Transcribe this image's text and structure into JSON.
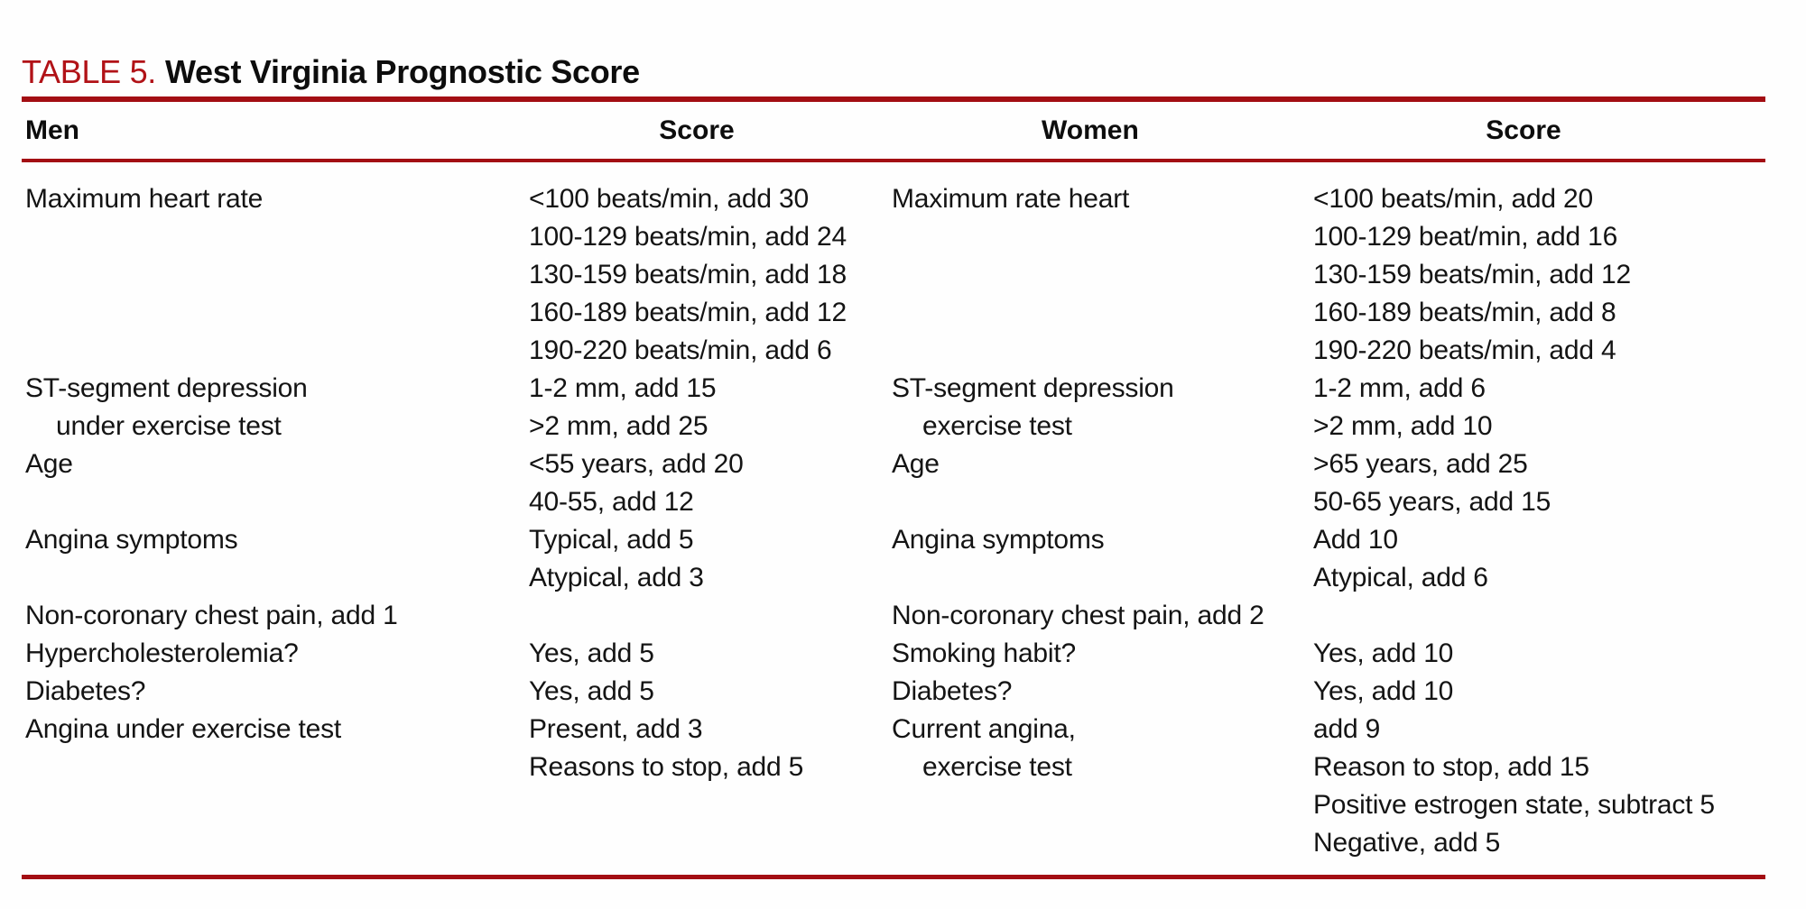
{
  "title": {
    "label": "TABLE 5.",
    "text": "West Virginia Prognostic Score"
  },
  "colors": {
    "title_red": "#b11217",
    "rule_red": "#a30e13",
    "text": "#141414"
  },
  "header": {
    "men": "Men",
    "men_score": "Score",
    "women": "Women",
    "women_score": "Score"
  },
  "rows": [
    {
      "men": "Maximum heart rate",
      "men_score": "<100 beats/min, add 30",
      "women": "Maximum rate heart",
      "women_score": "<100 beats/min, add 20"
    },
    {
      "men": "",
      "men_score": "100-129 beats/min, add 24",
      "women": "",
      "women_score": "100-129 beat/min, add 16"
    },
    {
      "men": "",
      "men_score": "130-159 beats/min, add 18",
      "women": "",
      "women_score": "130-159 beats/min, add 12"
    },
    {
      "men": "",
      "men_score": "160-189 beats/min, add 12",
      "women": "",
      "women_score": "160-189 beats/min, add 8"
    },
    {
      "men": "",
      "men_score": "190-220 beats/min, add 6",
      "women": "",
      "women_score": "190-220 beats/min, add 4"
    },
    {
      "men": "ST-segment depression",
      "men_score": "1-2 mm, add 15",
      "women": "ST-segment depression",
      "women_score": "1-2 mm, add 6"
    },
    {
      "men": "under exercise test",
      "men_score": ">2 mm, add 25",
      "women": "exercise test",
      "women_score": ">2 mm, add 10"
    },
    {
      "men": "Age",
      "men_score": "<55 years, add 20",
      "women": "Age",
      "women_score": ">65 years, add 25"
    },
    {
      "men": "",
      "men_score": "40-55, add 12",
      "women": "",
      "women_score": "50-65 years, add 15"
    },
    {
      "men": "Angina symptoms",
      "men_score": "Typical, add 5",
      "women": "Angina symptoms",
      "women_score": "Add 10"
    },
    {
      "men": "",
      "men_score": "Atypical, add 3",
      "women": "",
      "women_score": "Atypical, add 6"
    },
    {
      "men": "Non-coronary chest pain, add 1",
      "men_score": "",
      "women": "Non-coronary chest pain, add 2",
      "women_score": ""
    },
    {
      "men": "Hypercholesterolemia?",
      "men_score": "Yes, add 5",
      "women": "Smoking habit?",
      "women_score": "Yes, add 10"
    },
    {
      "men": "Diabetes?",
      "men_score": "Yes, add 5",
      "women": "Diabetes?",
      "women_score": "Yes, add 10"
    },
    {
      "men": "Angina under exercise test",
      "men_score": "Present, add 3",
      "women": "Current angina,",
      "women_score": "add 9"
    },
    {
      "men": "",
      "men_score": "Reasons to stop, add 5",
      "women": "exercise test",
      "women_score": "Reason to stop, add 15"
    },
    {
      "men": "",
      "men_score": "",
      "women": "",
      "women_score": "Positive estrogen state, subtract 5"
    },
    {
      "men": "",
      "men_score": "",
      "women": "",
      "women_score": "Negative, add 5"
    }
  ]
}
